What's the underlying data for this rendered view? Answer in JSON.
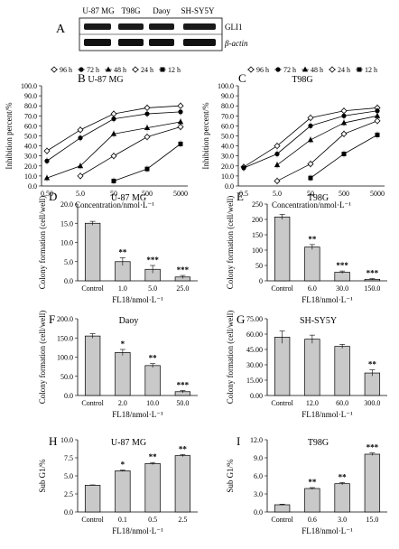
{
  "panel_a": {
    "letter": "A",
    "lanes": [
      "U-87 MG",
      "T98G",
      "Daoy",
      "SH-SY5Y"
    ],
    "rows": [
      "GLI1",
      "β-actin"
    ]
  },
  "legend_times": [
    "96 h",
    "72 h",
    "48 h",
    "24 h",
    "12 h"
  ],
  "chart_data": [
    {
      "panel": "B",
      "type": "line",
      "title": "U-87 MG",
      "xlabel": "Concentration/nmol·L⁻¹",
      "ylabel": "Inhibition percent/%",
      "categories": [
        "0.50",
        "5.0",
        "50",
        "500",
        "5000"
      ],
      "ylim": [
        0,
        100
      ],
      "yticks": [
        "0.0",
        "10.0",
        "20.0",
        "30.0",
        "40.0",
        "50.0",
        "60.0",
        "70.0",
        "80.0",
        "90.0",
        "100.0"
      ],
      "series": [
        {
          "name": "96 h",
          "marker": "diamond-open",
          "values": [
            35,
            56,
            72,
            78,
            80
          ]
        },
        {
          "name": "72 h",
          "marker": "circle",
          "values": [
            25,
            48,
            67,
            72,
            74
          ]
        },
        {
          "name": "48 h",
          "marker": "triangle",
          "values": [
            8,
            20,
            52,
            58,
            64
          ]
        },
        {
          "name": "24 h",
          "marker": "diamond-open",
          "values": [
            null,
            10,
            30,
            49,
            59
          ]
        },
        {
          "name": "12 h",
          "marker": "square",
          "values": [
            null,
            null,
            5,
            17,
            42
          ]
        }
      ]
    },
    {
      "panel": "C",
      "type": "line",
      "title": "T98G",
      "xlabel": "Concentration/nmol·L⁻¹",
      "ylabel": "Inhibition percent/%",
      "categories": [
        "0.5",
        "5.0",
        "50",
        "500",
        "5000"
      ],
      "ylim": [
        0,
        100
      ],
      "yticks": [
        "0.0",
        "10.0",
        "20.0",
        "30.0",
        "40.0",
        "50.0",
        "60.0",
        "70.0",
        "80.0",
        "90.0",
        "100.0"
      ],
      "series": [
        {
          "name": "96 h",
          "marker": "diamond-open",
          "values": [
            19,
            40,
            68,
            75,
            78
          ]
        },
        {
          "name": "72 h",
          "marker": "circle",
          "values": [
            18,
            32,
            60,
            70,
            75
          ]
        },
        {
          "name": "48 h",
          "marker": "triangle",
          "values": [
            null,
            21,
            46,
            63,
            70
          ]
        },
        {
          "name": "24 h",
          "marker": "diamond-open",
          "values": [
            null,
            5,
            22,
            52,
            65
          ]
        },
        {
          "name": "12 h",
          "marker": "square",
          "values": [
            null,
            null,
            8,
            32,
            51
          ]
        }
      ]
    },
    {
      "panel": "D",
      "type": "bar",
      "title": "U-87 MG",
      "xlabel": "FL18/nmol·L⁻¹",
      "ylabel": "Colony formation (cell/well)",
      "categories": [
        "Control",
        "1.0",
        "5.0",
        "25.0"
      ],
      "values": [
        15,
        5,
        3,
        1
      ],
      "errors": [
        0.5,
        1.0,
        1.0,
        0.4
      ],
      "sig": [
        "",
        "**",
        "***",
        "***"
      ],
      "ylim": [
        0,
        20
      ],
      "yticks": [
        "0.0",
        "5.0",
        "10.0",
        "15.0",
        "20.0"
      ]
    },
    {
      "panel": "E",
      "type": "bar",
      "title": "T98G",
      "xlabel": "FL18/nmol·L⁻¹",
      "ylabel": "Colony formation (cell/well)",
      "categories": [
        "Control",
        "6.0",
        "30.0",
        "150.0"
      ],
      "values": [
        208,
        110,
        28,
        5
      ],
      "errors": [
        8,
        8,
        4,
        2
      ],
      "sig": [
        "",
        "**",
        "***",
        "***"
      ],
      "ylim": [
        0,
        250
      ],
      "yticks": [
        "0",
        "50",
        "100",
        "150",
        "200",
        "250"
      ]
    },
    {
      "panel": "F",
      "type": "bar",
      "title": "Daoy",
      "xlabel": "FL18/nmol·L⁻¹",
      "ylabel": "Colony formation (cell/well)",
      "categories": [
        "Control",
        "2.0",
        "10.0",
        "50.0"
      ],
      "values": [
        155,
        112,
        78,
        10
      ],
      "errors": [
        6,
        8,
        5,
        3
      ],
      "sig": [
        "",
        "*",
        "**",
        "***"
      ],
      "ylim": [
        0,
        200
      ],
      "yticks": [
        "0.0",
        "50.0",
        "100.0",
        "150.0",
        "200.0"
      ]
    },
    {
      "panel": "G",
      "type": "bar",
      "title": "SH-SY5Y",
      "xlabel": "FL18/nmol·L⁻¹",
      "ylabel": "Colony formation (cell/well)",
      "categories": [
        "Control",
        "12.0",
        "60.0",
        "300.0"
      ],
      "values": [
        57,
        55,
        48,
        22
      ],
      "errors": [
        6,
        4,
        2,
        3
      ],
      "sig": [
        "",
        "",
        "",
        "**"
      ],
      "ylim": [
        0,
        75
      ],
      "yticks": [
        "0.00",
        "15.00",
        "30.00",
        "45.00",
        "60.00",
        "75.00"
      ]
    },
    {
      "panel": "H",
      "type": "bar",
      "title": "U-87 MG",
      "xlabel": "FL18/nmol·L⁻¹",
      "ylabel": "Sub G1/%",
      "categories": [
        "Control",
        "0.1",
        "0.5",
        "2.5"
      ],
      "values": [
        3.7,
        5.7,
        6.7,
        7.8
      ],
      "errors": [
        0.05,
        0.1,
        0.15,
        0.15
      ],
      "sig": [
        "",
        "*",
        "**",
        "**"
      ],
      "ylim": [
        0,
        10
      ],
      "yticks": [
        "0.0",
        "2.5",
        "5.0",
        "7.5",
        "10.0"
      ]
    },
    {
      "panel": "I",
      "type": "bar",
      "title": "T98G",
      "xlabel": "FL18/nmol·L⁻¹",
      "ylabel": "Sub G1/%",
      "categories": [
        "Control",
        "0.6",
        "3.0",
        "15.0"
      ],
      "values": [
        1.2,
        3.9,
        4.7,
        9.6
      ],
      "errors": [
        0.1,
        0.15,
        0.2,
        0.2
      ],
      "sig": [
        "",
        "**",
        "**",
        "***"
      ],
      "ylim": [
        0,
        12
      ],
      "yticks": [
        "0.0",
        "3.0",
        "6.0",
        "9.0",
        "12.0"
      ]
    }
  ]
}
